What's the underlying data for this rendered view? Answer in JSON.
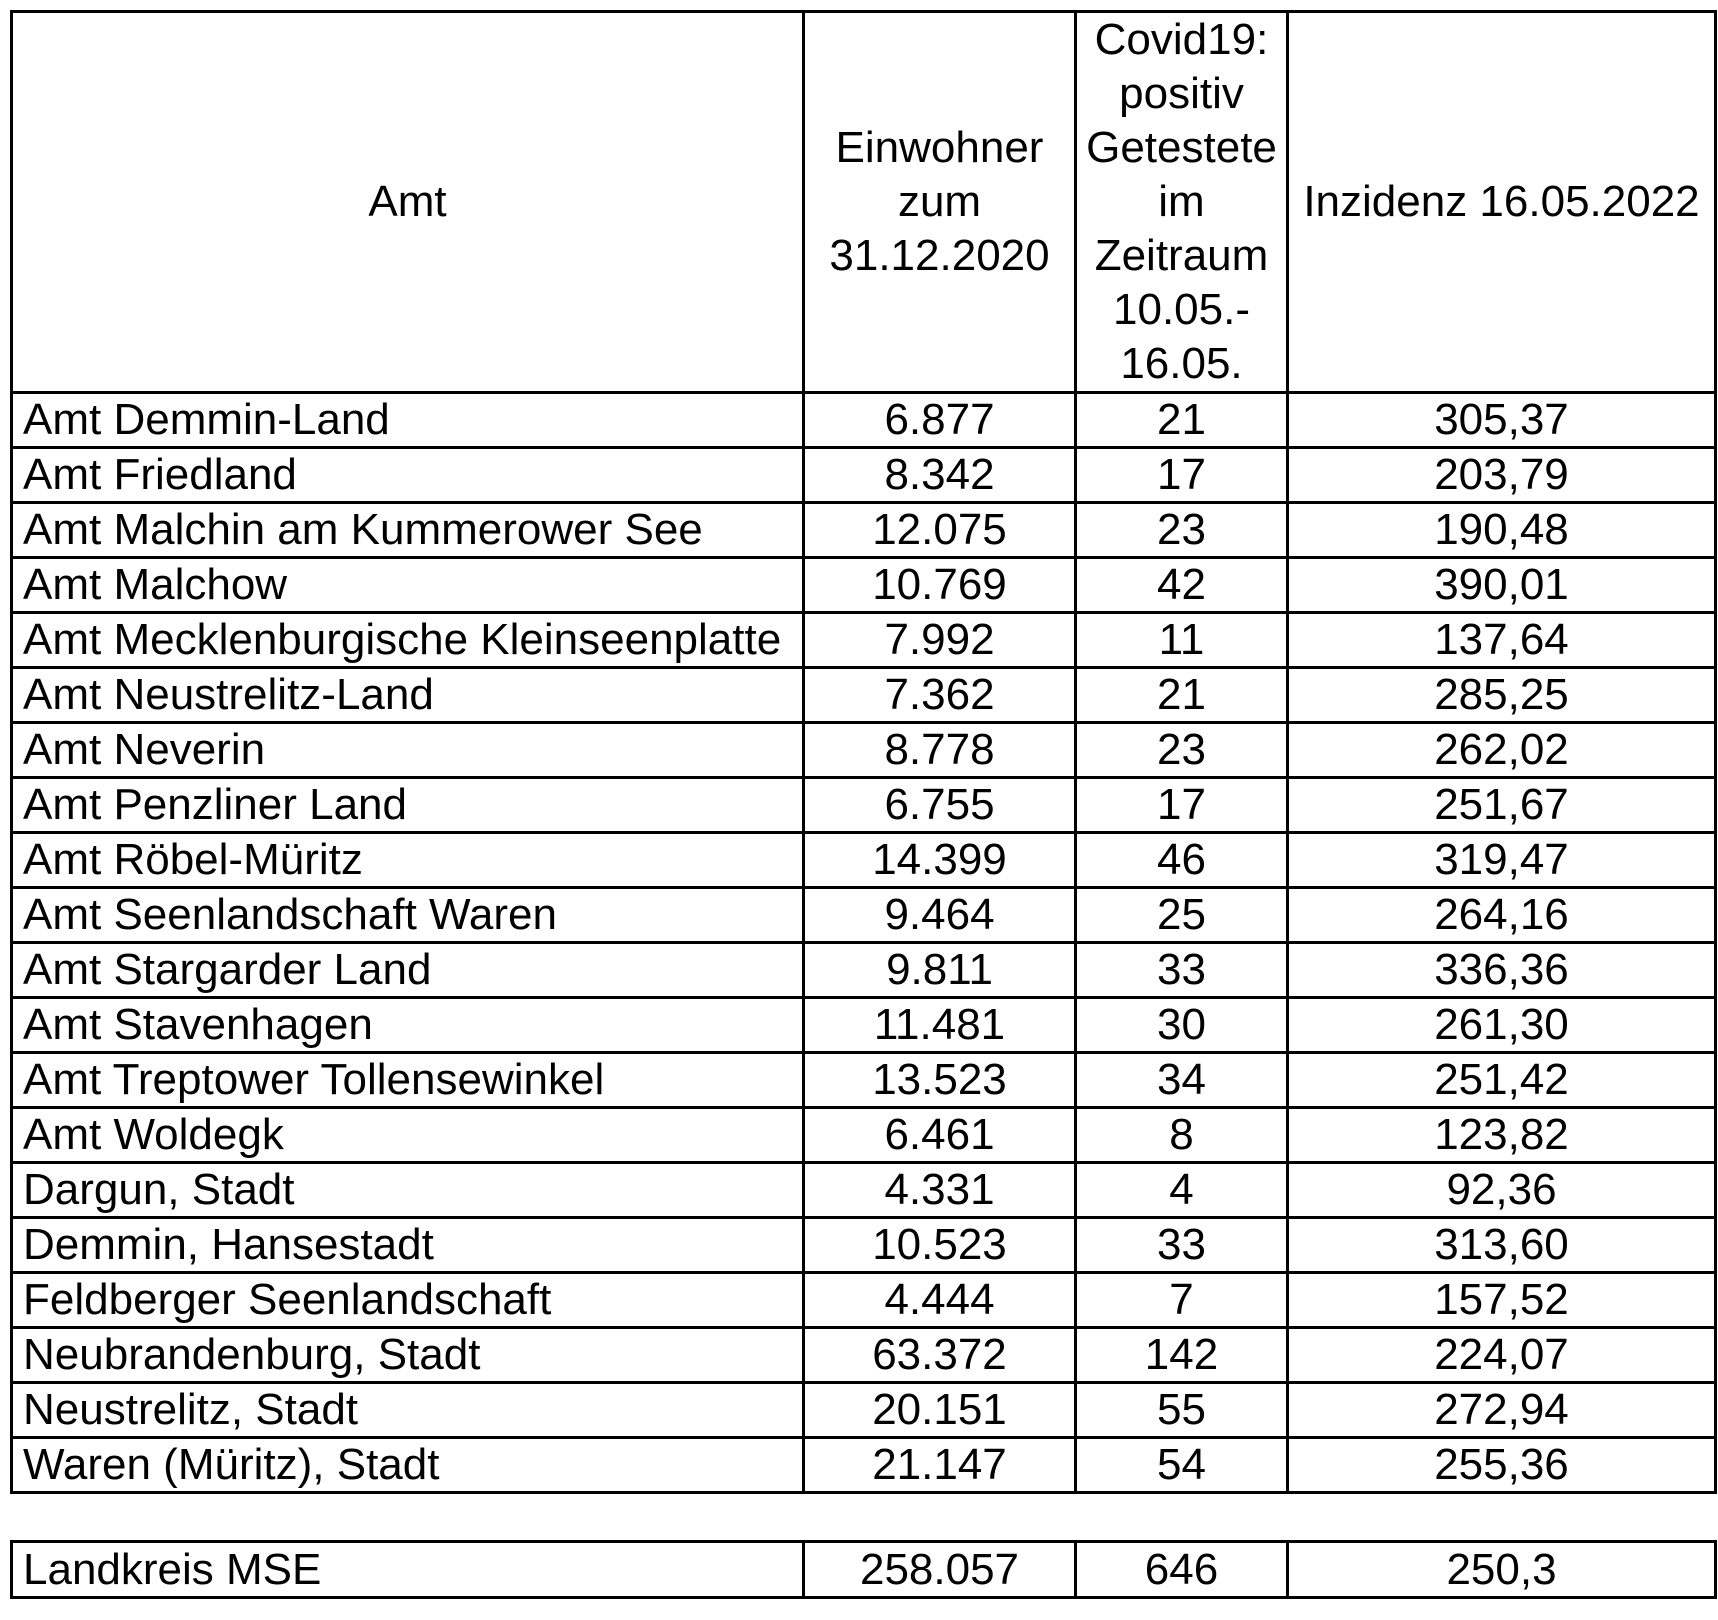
{
  "table": {
    "columns": [
      "Amt",
      "Einwohner\nzum\n31.12.2020",
      "Covid19:\npositiv\nGetestete\nim\nZeitraum\n10.05.-\n16.05.",
      "Inzidenz 16.05.2022"
    ],
    "rows": [
      [
        "Amt Demmin-Land",
        "6.877",
        "21",
        "305,37"
      ],
      [
        "Amt Friedland",
        "8.342",
        "17",
        "203,79"
      ],
      [
        "Amt Malchin am Kummerower See",
        "12.075",
        "23",
        "190,48"
      ],
      [
        "Amt Malchow",
        "10.769",
        "42",
        "390,01"
      ],
      [
        "Amt Mecklenburgische Kleinseenplatte",
        "7.992",
        "11",
        "137,64"
      ],
      [
        "Amt Neustrelitz-Land",
        "7.362",
        "21",
        "285,25"
      ],
      [
        "Amt Neverin",
        "8.778",
        "23",
        "262,02"
      ],
      [
        "Amt Penzliner Land",
        "6.755",
        "17",
        "251,67"
      ],
      [
        "Amt Röbel-Müritz",
        "14.399",
        "46",
        "319,47"
      ],
      [
        "Amt Seenlandschaft Waren",
        "9.464",
        "25",
        "264,16"
      ],
      [
        "Amt Stargarder Land",
        "9.811",
        "33",
        "336,36"
      ],
      [
        "Amt Stavenhagen",
        "11.481",
        "30",
        "261,30"
      ],
      [
        "Amt Treptower Tollensewinkel",
        "13.523",
        "34",
        "251,42"
      ],
      [
        "Amt Woldegk",
        "6.461",
        "8",
        "123,82"
      ],
      [
        "Dargun, Stadt",
        "4.331",
        "4",
        "92,36"
      ],
      [
        "Demmin, Hansestadt",
        "10.523",
        "33",
        "313,60"
      ],
      [
        "Feldberger Seenlandschaft",
        "4.444",
        "7",
        "157,52"
      ],
      [
        "Neubrandenburg, Stadt",
        "63.372",
        "142",
        "224,07"
      ],
      [
        "Neustrelitz, Stadt",
        "20.151",
        "55",
        "272,94"
      ],
      [
        "Waren (Müritz), Stadt",
        "21.147",
        "54",
        "255,36"
      ]
    ],
    "summary": [
      "Landkreis MSE",
      "258.057",
      "646",
      "250,3"
    ]
  }
}
